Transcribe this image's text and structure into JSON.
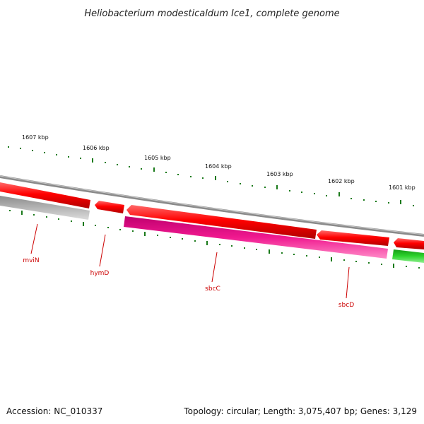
{
  "title": "Heliobacterium modesticaldum Ice1, complete genome",
  "accession_text": "Accession: NC_010337",
  "summary_text": "Topology: circular; Length: 3,075,407 bp; Genes: 3,129",
  "kbp_labels": [
    "1607 kbp",
    "1606 kbp",
    "1605 kbp",
    "1604 kbp",
    "1603 kbp",
    "1602 kbp",
    "1601 kbp"
  ],
  "gene_labels": [
    "mviN",
    "hymD",
    "sbcC",
    "sbcD"
  ],
  "colors": {
    "backbone": "#8a8a8a",
    "forward_gene": "#e00000",
    "reverse_gene_magenta": "#e0198c",
    "reverse_gene_gray": "#a8a8a8",
    "reverse_gene_green": "#22c022",
    "tick": "#1a7a1a",
    "label": "#cc0000"
  }
}
